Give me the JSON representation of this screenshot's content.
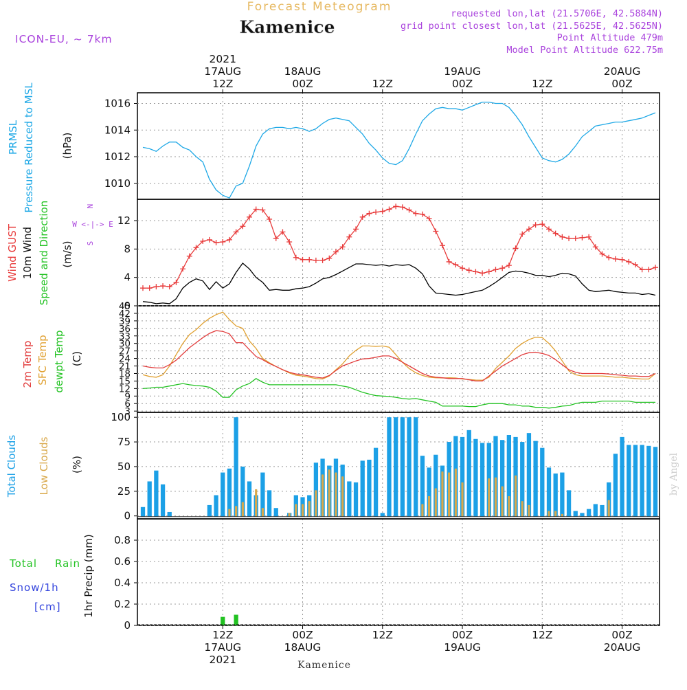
{
  "header": {
    "product": "Forecast Meteogram",
    "location": "Kamenice",
    "model": "ICON-EU, ~ 7km",
    "info": [
      "requested lon,lat (21.5706E, 42.5884N)",
      "grid point closest lon,lat (21.5625E, 42.5625N)",
      "Point Altitude 479m",
      "Model Point Altitude 622.75m"
    ],
    "footer_location": "Kamenice",
    "credit": "by Angel"
  },
  "colors": {
    "pressure": "#1ea8e6",
    "gust": "#e83a3a",
    "wind": "#000000",
    "dir_label": "#22c222",
    "compass": "#aa44dd",
    "temp2m": "#e23c3c",
    "sfc": "#e0a030",
    "dew": "#22c222",
    "total_clouds": "#1ca0e6",
    "low_clouds": "#d9a84a",
    "rain": "#22c222",
    "snow": "#3344dd",
    "header_purple": "#aa44dd",
    "header_orange": "#e6b860"
  },
  "time_axis": {
    "top_labels": [
      {
        "hour": 12,
        "lines": [
          "2021",
          "17AUG",
          "12Z"
        ]
      },
      {
        "hour": 24,
        "lines": [
          "18AUG",
          "00Z"
        ]
      },
      {
        "hour": 36,
        "lines": [
          "12Z"
        ]
      },
      {
        "hour": 48,
        "lines": [
          "19AUG",
          "00Z"
        ]
      },
      {
        "hour": 60,
        "lines": [
          "12Z"
        ]
      },
      {
        "hour": 72,
        "lines": [
          "20AUG",
          "00Z"
        ]
      }
    ],
    "bottom_labels": [
      {
        "hour": 12,
        "lines": [
          "12Z",
          "17AUG",
          "2021"
        ]
      },
      {
        "hour": 24,
        "lines": [
          "00Z",
          "18AUG"
        ]
      },
      {
        "hour": 36,
        "lines": [
          "12Z"
        ]
      },
      {
        "hour": 48,
        "lines": [
          "00Z",
          "19AUG"
        ]
      },
      {
        "hour": 60,
        "lines": [
          "12Z"
        ]
      },
      {
        "hour": 72,
        "lines": [
          "00Z",
          "20AUG"
        ]
      }
    ]
  },
  "panel_labels": {
    "pressure": [
      "PRMSL",
      "Pressure Reduced to MSL",
      "(hPa)"
    ],
    "wind": [
      "Wind GUST",
      "10m Wind",
      "Speed and Direction",
      "(m/s)"
    ],
    "compass": [
      "N",
      "W <-|-> E",
      "S"
    ],
    "temp": [
      "2m Temp",
      "SFC Temp",
      "dewpt Temp",
      "(C)"
    ],
    "clouds": [
      "Total Clouds",
      "Low Clouds",
      "(%)"
    ],
    "precip": [
      "Total",
      "Rain",
      "Snow/1h",
      "[cm]",
      "1hr Precip (mm)"
    ]
  },
  "chart_data": [
    {
      "type": "line",
      "name": "pressure",
      "x_unit": "hours from 17AUG 00Z",
      "ylim": [
        1008.8,
        1016.8
      ],
      "yticks": [
        1010,
        1012,
        1014,
        1016
      ],
      "x": [
        0,
        1,
        2,
        3,
        4,
        5,
        6,
        7,
        8,
        9,
        10,
        11,
        12,
        13,
        14,
        15,
        16,
        17,
        18,
        19,
        20,
        21,
        22,
        23,
        24,
        25,
        26,
        27,
        28,
        29,
        30,
        31,
        32,
        33,
        34,
        35,
        36,
        37,
        38,
        39,
        40,
        41,
        42,
        43,
        44,
        45,
        46,
        47,
        48,
        49,
        50,
        51,
        52,
        53,
        54,
        55,
        56,
        57,
        58,
        59,
        60,
        61,
        62,
        63,
        64,
        65,
        66,
        67,
        68,
        69,
        70,
        71,
        72,
        73,
        74,
        75,
        76,
        77
      ],
      "y": [
        1012.7,
        1012.6,
        1012.4,
        1012.8,
        1013.1,
        1013.1,
        1012.7,
        1012.5,
        1012.0,
        1011.6,
        1010.3,
        1009.5,
        1009.1,
        1008.9,
        1009.8,
        1010.0,
        1011.3,
        1012.8,
        1013.7,
        1014.1,
        1014.2,
        1014.2,
        1014.1,
        1014.2,
        1014.1,
        1013.9,
        1014.1,
        1014.5,
        1014.8,
        1014.9,
        1014.8,
        1014.7,
        1014.2,
        1013.7,
        1013.0,
        1012.5,
        1011.9,
        1011.5,
        1011.4,
        1011.7,
        1012.6,
        1013.7,
        1014.7,
        1015.2,
        1015.6,
        1015.7,
        1015.6,
        1015.6,
        1015.5,
        1015.7,
        1015.9,
        1016.1,
        1016.1,
        1016.0,
        1016.0,
        1015.7,
        1015.1,
        1014.4,
        1013.5,
        1012.7,
        1011.9,
        1011.7,
        1011.6,
        1011.8,
        1012.2,
        1012.8,
        1013.5,
        1013.9,
        1014.3,
        1014.4,
        1014.5,
        1014.6,
        1014.6,
        1014.7,
        1014.8,
        1014.9,
        1015.1,
        1015.3
      ]
    },
    {
      "type": "line",
      "name": "wind",
      "ylim": [
        0,
        15
      ],
      "yticks": [
        0,
        4,
        8,
        12
      ],
      "x": [
        0,
        1,
        2,
        3,
        4,
        5,
        6,
        7,
        8,
        9,
        10,
        11,
        12,
        13,
        14,
        15,
        16,
        17,
        18,
        19,
        20,
        21,
        22,
        23,
        24,
        25,
        26,
        27,
        28,
        29,
        30,
        31,
        32,
        33,
        34,
        35,
        36,
        37,
        38,
        39,
        40,
        41,
        42,
        43,
        44,
        45,
        46,
        47,
        48,
        49,
        50,
        51,
        52,
        53,
        54,
        55,
        56,
        57,
        58,
        59,
        60,
        61,
        62,
        63,
        64,
        65,
        66,
        67,
        68,
        69,
        70,
        71,
        72,
        73,
        74,
        75,
        76,
        77
      ],
      "gust": [
        2.5,
        2.5,
        2.7,
        2.8,
        2.7,
        3.3,
        5.2,
        7.0,
        8.2,
        9.1,
        9.3,
        8.9,
        9.0,
        9.3,
        10.4,
        11.2,
        12.5,
        13.6,
        13.5,
        12.2,
        9.5,
        10.4,
        9.0,
        6.8,
        6.5,
        6.5,
        6.4,
        6.4,
        6.7,
        7.6,
        8.3,
        9.7,
        10.8,
        12.5,
        13.0,
        13.2,
        13.3,
        13.6,
        14.0,
        13.9,
        13.5,
        13.0,
        12.9,
        12.3,
        10.5,
        8.5,
        6.2,
        5.8,
        5.3,
        5.0,
        4.8,
        4.6,
        4.8,
        5.1,
        5.3,
        5.7,
        8.1,
        10.1,
        10.8,
        11.4,
        11.5,
        10.8,
        10.2,
        9.7,
        9.5,
        9.5,
        9.6,
        9.7,
        8.3,
        7.3,
        6.8,
        6.6,
        6.5,
        6.2,
        5.8,
        5.1,
        5.1,
        5.4
      ],
      "speed": [
        0.6,
        0.5,
        0.3,
        0.4,
        0.3,
        1.0,
        2.5,
        3.3,
        3.8,
        3.5,
        2.3,
        3.4,
        2.5,
        3.1,
        4.7,
        6.0,
        5.2,
        4.0,
        3.3,
        2.2,
        2.3,
        2.2,
        2.2,
        2.4,
        2.5,
        2.7,
        3.2,
        3.8,
        4.0,
        4.4,
        4.9,
        5.4,
        5.9,
        5.9,
        5.8,
        5.7,
        5.8,
        5.6,
        5.8,
        5.7,
        5.8,
        5.3,
        4.5,
        2.8,
        1.8,
        1.7,
        1.6,
        1.5,
        1.6,
        1.8,
        2.0,
        2.2,
        2.7,
        3.3,
        4.0,
        4.7,
        4.9,
        4.8,
        4.6,
        4.3,
        4.3,
        4.1,
        4.3,
        4.6,
        4.5,
        4.2,
        3.1,
        2.2,
        2.0,
        2.1,
        2.2,
        2.0,
        1.9,
        1.8,
        1.8,
        1.6,
        1.7,
        1.5
      ]
    },
    {
      "type": "line",
      "name": "temperature",
      "ylim": [
        2.5,
        45
      ],
      "yticks": [
        3,
        6,
        9,
        12,
        15,
        18,
        21,
        24,
        27,
        30,
        33,
        36,
        39,
        42,
        45
      ],
      "x": [
        0,
        1,
        2,
        3,
        4,
        5,
        6,
        7,
        8,
        9,
        10,
        11,
        12,
        13,
        14,
        15,
        16,
        17,
        18,
        19,
        20,
        21,
        22,
        23,
        24,
        25,
        26,
        27,
        28,
        29,
        30,
        31,
        32,
        33,
        34,
        35,
        36,
        37,
        38,
        39,
        40,
        41,
        42,
        43,
        44,
        45,
        46,
        47,
        48,
        49,
        50,
        51,
        52,
        53,
        54,
        55,
        56,
        57,
        58,
        59,
        60,
        61,
        62,
        63,
        64,
        65,
        66,
        67,
        68,
        69,
        70,
        71,
        72,
        73,
        74,
        75,
        76,
        77
      ],
      "t2m": [
        21.0,
        20.5,
        20.2,
        20.2,
        21.5,
        23.3,
        25.8,
        28.3,
        30.3,
        32.3,
        34.0,
        35.1,
        34.8,
        33.8,
        30.3,
        30.3,
        27.5,
        24.8,
        23.5,
        22.0,
        20.8,
        19.5,
        18.5,
        17.8,
        17.5,
        17.0,
        16.5,
        16.2,
        17.2,
        19.2,
        21.0,
        22.0,
        23.0,
        23.8,
        24.0,
        24.5,
        25.0,
        25.0,
        24.0,
        22.5,
        21.0,
        19.5,
        18.0,
        17.0,
        16.5,
        16.3,
        16.0,
        16.0,
        16.0,
        15.5,
        15.0,
        15.0,
        17.0,
        19.0,
        21.0,
        22.5,
        24.0,
        25.5,
        26.3,
        26.5,
        26.0,
        25.2,
        23.5,
        21.5,
        19.5,
        18.5,
        18.0,
        18.0,
        18.0,
        18.0,
        17.8,
        17.5,
        17.3,
        17.0,
        17.0,
        16.8,
        16.8,
        18.0
      ],
      "sfc": [
        17.5,
        16.8,
        16.5,
        17.5,
        21.0,
        25.5,
        30.0,
        33.5,
        35.5,
        38.0,
        40.0,
        41.5,
        42.5,
        39.5,
        37.0,
        36.0,
        31.0,
        28.0,
        24.0,
        22.3,
        20.8,
        19.5,
        18.2,
        17.3,
        17.0,
        16.5,
        16.0,
        15.8,
        17.0,
        19.5,
        21.8,
        25.0,
        27.2,
        29.0,
        29.0,
        28.8,
        29.0,
        28.5,
        25.5,
        22.5,
        20.0,
        18.3,
        17.2,
        16.5,
        16.3,
        16.2,
        16.3,
        16.2,
        15.8,
        15.6,
        15.4,
        15.3,
        16.5,
        20.0,
        22.5,
        25.0,
        28.0,
        30.0,
        31.5,
        32.5,
        32.3,
        30.0,
        27.0,
        23.0,
        19.0,
        17.5,
        17.0,
        17.0,
        17.0,
        17.0,
        16.8,
        16.5,
        16.5,
        16.2,
        16.0,
        15.8,
        15.8,
        18.0
      ],
      "dewpt": [
        12.0,
        12.2,
        12.5,
        12.5,
        13.0,
        13.5,
        14.0,
        13.5,
        13.2,
        13.0,
        12.5,
        11.0,
        8.5,
        8.5,
        11.5,
        13.0,
        14.0,
        16.0,
        14.5,
        13.5,
        13.5,
        13.5,
        13.5,
        13.5,
        13.5,
        13.5,
        13.5,
        13.5,
        13.5,
        13.5,
        13.0,
        12.5,
        11.5,
        10.5,
        9.8,
        9.2,
        9.0,
        8.8,
        8.5,
        8.0,
        7.8,
        8.0,
        7.5,
        7.0,
        6.5,
        5.0,
        5.0,
        5.0,
        5.0,
        4.8,
        4.8,
        5.5,
        6.0,
        6.0,
        6.0,
        5.5,
        5.5,
        5.0,
        5.0,
        4.5,
        4.5,
        4.2,
        4.5,
        5.0,
        5.2,
        6.0,
        6.5,
        6.5,
        6.5,
        7.0,
        7.0,
        7.0,
        7.0,
        7.0,
        6.5,
        6.5,
        6.5,
        6.5
      ]
    },
    {
      "type": "bar",
      "name": "clouds",
      "ylim": [
        -3,
        105
      ],
      "yticks": [
        0,
        25,
        50,
        75,
        100
      ],
      "x": [
        0,
        1,
        2,
        3,
        4,
        5,
        6,
        7,
        8,
        9,
        10,
        11,
        12,
        13,
        14,
        15,
        16,
        17,
        18,
        19,
        20,
        21,
        22,
        23,
        24,
        25,
        26,
        27,
        28,
        29,
        30,
        31,
        32,
        33,
        34,
        35,
        36,
        37,
        38,
        39,
        40,
        41,
        42,
        43,
        44,
        45,
        46,
        47,
        48,
        49,
        50,
        51,
        52,
        53,
        54,
        55,
        56,
        57,
        58,
        59,
        60,
        61,
        62,
        63,
        64,
        65,
        66,
        67,
        68,
        69,
        70,
        71,
        72,
        73,
        74,
        75,
        76,
        77
      ],
      "total": [
        9,
        35,
        46,
        32,
        4,
        0,
        0,
        0,
        0,
        0,
        11,
        21,
        44,
        48,
        100,
        50,
        35,
        21,
        44,
        26,
        8,
        0,
        3,
        21,
        19,
        21,
        54,
        58,
        51,
        58,
        52,
        35,
        34,
        56,
        57,
        69,
        3,
        100,
        100,
        100,
        100,
        100,
        61,
        49,
        62,
        51,
        75,
        81,
        80,
        87,
        78,
        74,
        74,
        81,
        77,
        82,
        80,
        75,
        84,
        76,
        69,
        49,
        43,
        44,
        26,
        5,
        3,
        7,
        12,
        11,
        34,
        63,
        80,
        72,
        72,
        72,
        71,
        70
      ],
      "low": [
        0,
        0,
        0,
        0,
        0,
        0,
        0,
        0,
        0,
        0,
        0,
        0,
        0,
        7,
        10,
        14,
        0,
        27,
        8,
        0,
        0,
        0,
        3,
        12,
        12,
        15,
        26,
        42,
        47,
        44,
        40,
        0,
        0,
        0,
        0,
        0,
        0,
        0,
        0,
        0,
        0,
        0,
        12,
        20,
        28,
        45,
        44,
        48,
        34,
        0,
        0,
        0,
        38,
        39,
        30,
        20,
        41,
        15,
        11,
        0,
        0,
        5,
        5,
        2,
        0,
        0,
        0,
        0,
        0,
        0,
        16,
        0,
        0,
        0,
        0,
        0,
        0,
        0
      ]
    },
    {
      "type": "bar",
      "name": "precip",
      "ylim": [
        0,
        1
      ],
      "yticks": [
        0,
        0.2,
        0.4,
        0.6,
        0.8
      ],
      "x": [
        12,
        13,
        14
      ],
      "rain": [
        0.08,
        0.01,
        0.1
      ]
    }
  ]
}
